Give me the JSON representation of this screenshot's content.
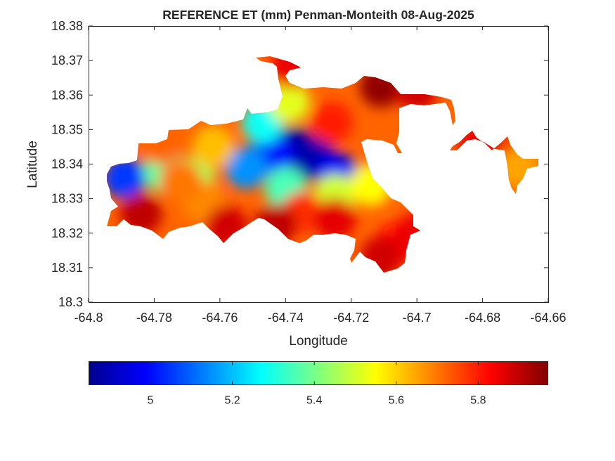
{
  "chart_data": {
    "type": "heatmap",
    "title": "REFERENCE ET (mm) Penman-Monteith 08-Aug-2025",
    "xlabel": "Longitude",
    "ylabel": "Latitude",
    "xlim": [
      -64.8,
      -64.66
    ],
    "ylim": [
      18.3,
      18.38
    ],
    "xticks": [
      -64.8,
      -64.78,
      -64.76,
      -64.74,
      -64.72,
      -64.7,
      -64.68,
      -64.66
    ],
    "yticks": [
      18.3,
      18.31,
      18.32,
      18.33,
      18.34,
      18.35,
      18.36,
      18.37,
      18.38
    ],
    "xtick_labels": [
      "-64.8",
      "-64.78",
      "-64.76",
      "-64.74",
      "-64.72",
      "-64.7",
      "-64.68",
      "-64.66"
    ],
    "ytick_labels": [
      "18.3",
      "18.31",
      "18.32",
      "18.33",
      "18.34",
      "18.35",
      "18.36",
      "18.37",
      "18.38"
    ],
    "colormap": "jet",
    "colorbar": {
      "orientation": "horizontal",
      "placement": "below",
      "range": [
        4.85,
        5.97
      ],
      "ticks": [
        5.0,
        5.2,
        5.4,
        5.6,
        5.8
      ],
      "tick_labels": [
        "5",
        "5.2",
        "5.4",
        "5.6",
        "5.8"
      ]
    },
    "value_range": [
      4.85,
      5.97
    ],
    "features": [
      {
        "lon": -64.737,
        "lat": 18.3445,
        "value": 4.88
      },
      {
        "lon": -64.731,
        "lat": 18.3415,
        "value": 4.9
      },
      {
        "lon": -64.744,
        "lat": 18.343,
        "value": 5.0
      },
      {
        "lon": -64.724,
        "lat": 18.337,
        "value": 4.98
      },
      {
        "lon": -64.752,
        "lat": 18.339,
        "value": 5.15
      },
      {
        "lon": -64.789,
        "lat": 18.336,
        "value": 5.05
      },
      {
        "lon": -64.777,
        "lat": 18.338,
        "value": 5.38
      },
      {
        "lon": -64.768,
        "lat": 18.336,
        "value": 5.45
      },
      {
        "lon": -64.747,
        "lat": 18.352,
        "value": 5.28
      },
      {
        "lon": -64.739,
        "lat": 18.358,
        "value": 5.52
      },
      {
        "lon": -64.74,
        "lat": 18.333,
        "value": 5.35
      },
      {
        "lon": -64.725,
        "lat": 18.331,
        "value": 5.5
      },
      {
        "lon": -64.714,
        "lat": 18.334,
        "value": 5.55
      },
      {
        "lon": -64.762,
        "lat": 18.345,
        "value": 5.62
      },
      {
        "lon": -64.765,
        "lat": 18.329,
        "value": 5.68
      },
      {
        "lon": -64.778,
        "lat": 18.346,
        "value": 5.72
      },
      {
        "lon": -64.735,
        "lat": 18.326,
        "value": 5.78
      },
      {
        "lon": -64.784,
        "lat": 18.3255,
        "value": 5.9
      },
      {
        "lon": -64.758,
        "lat": 18.322,
        "value": 5.88
      },
      {
        "lon": -64.743,
        "lat": 18.3225,
        "value": 5.9
      },
      {
        "lon": -64.725,
        "lat": 18.324,
        "value": 5.86
      },
      {
        "lon": -64.726,
        "lat": 18.352,
        "value": 5.8
      },
      {
        "lon": -64.711,
        "lat": 18.3625,
        "value": 5.95
      },
      {
        "lon": -64.706,
        "lat": 18.317,
        "value": 5.82
      },
      {
        "lon": -64.711,
        "lat": 18.313,
        "value": 5.88
      },
      {
        "lon": -64.738,
        "lat": 18.368,
        "value": 5.85
      },
      {
        "lon": -64.7,
        "lat": 18.3615,
        "value": 5.88
      },
      {
        "lon": -64.681,
        "lat": 18.3455,
        "value": 5.85
      },
      {
        "lon": -64.67,
        "lat": 18.342,
        "value": 5.85
      },
      {
        "lon": -64.669,
        "lat": 18.339,
        "value": 5.65
      },
      {
        "lon": -64.772,
        "lat": 18.335,
        "value": 5.7
      },
      {
        "lon": -64.7,
        "lat": 18.32,
        "value": 5.85
      }
    ]
  }
}
